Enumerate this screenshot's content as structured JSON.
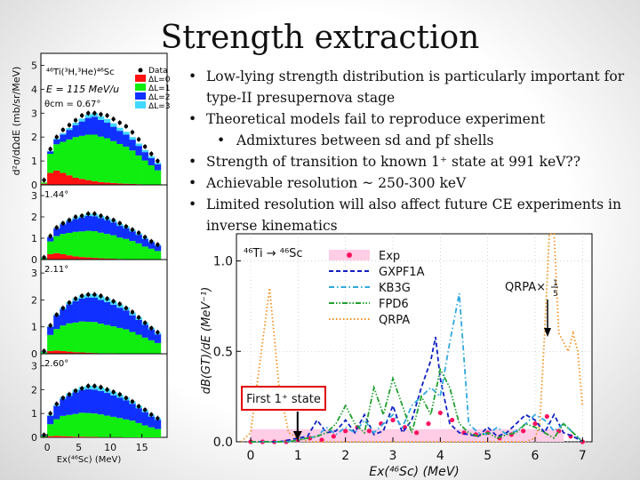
{
  "slide": {
    "title": "Strength extraction",
    "bullets": [
      {
        "text": "Low-lying strength distribution is particularly important for type-II presupernova stage",
        "level": 1
      },
      {
        "text": "Theoretical models fail to reproduce experiment",
        "level": 1
      },
      {
        "text": "Admixtures between sd and pf shells",
        "level": 2
      },
      {
        "text": "Strength of transition to known 1⁺ state at 991 keV??",
        "level": 1
      },
      {
        "text": "Achievable resolution ~ 250-300 keV",
        "level": 1
      },
      {
        "text": "Limited resolution will also affect future CE experiments in inverse kinematics",
        "level": 1
      }
    ]
  },
  "chart_data": [
    {
      "type": "bar",
      "stacked": true,
      "reaction": "⁴⁶Ti(³H,³He)⁴⁶Sc",
      "beam_energy": "E = 115 MeV/u",
      "ylabel": "d²σ/dΩdE (mb/sr/MeV)",
      "xlabel": "Ex(⁴⁶Sc) (MeV)",
      "xlim": [
        -1,
        19
      ],
      "x_ticks": [
        "0",
        "5",
        "10",
        "15"
      ],
      "legend": [
        "Data",
        "ΔL=0",
        "ΔL=1",
        "ΔL=2",
        "ΔL=3"
      ],
      "colors": {
        "dL0": "#ff1010",
        "dL1": "#10ee10",
        "dL2": "#1030ff",
        "dL3": "#40d8ff",
        "data": "#000000"
      },
      "x_centers": [
        -0.5,
        0.5,
        1.5,
        2.5,
        3.5,
        4.5,
        5.5,
        6.5,
        7.5,
        8.5,
        9.5,
        10.5,
        11.5,
        12.5,
        13.5,
        14.5,
        15.5,
        16.5,
        17.5
      ],
      "panels": [
        {
          "angle": "θcm = 0.67°",
          "ylim": [
            0,
            5.5
          ],
          "y_ticks": [
            "0",
            "1",
            "2",
            "3",
            "4",
            "5"
          ],
          "dL0": [
            0.05,
            0.5,
            0.6,
            0.5,
            0.4,
            0.3,
            0.25,
            0.2,
            0.15,
            0.12,
            0.1,
            0.08,
            0.06,
            0.05,
            0.04,
            0.03,
            0.02,
            0.02,
            0.01
          ],
          "dL1": [
            0.05,
            0.8,
            1.1,
            1.3,
            1.5,
            1.7,
            1.8,
            1.9,
            1.95,
            1.9,
            1.85,
            1.75,
            1.65,
            1.55,
            1.4,
            1.2,
            1.0,
            0.8,
            0.6
          ],
          "dL2": [
            0.0,
            0.1,
            0.2,
            0.3,
            0.4,
            0.5,
            0.6,
            0.7,
            0.75,
            0.7,
            0.65,
            0.6,
            0.55,
            0.5,
            0.45,
            0.4,
            0.35,
            0.3,
            0.25
          ],
          "dL3": [
            0.0,
            0.02,
            0.04,
            0.06,
            0.08,
            0.1,
            0.12,
            0.14,
            0.15,
            0.15,
            0.15,
            0.14,
            0.13,
            0.12,
            0.11,
            0.1,
            0.09,
            0.08,
            0.07
          ],
          "data": [
            0.2,
            1.5,
            2.0,
            2.3,
            2.5,
            2.7,
            2.9,
            3.0,
            3.0,
            2.95,
            2.9,
            2.75,
            2.6,
            2.45,
            2.2,
            1.9,
            1.6,
            1.3,
            1.0
          ]
        },
        {
          "angle": "1.44°",
          "ylim": [
            0,
            3.5
          ],
          "y_ticks": [
            "0",
            "1",
            "2",
            "3"
          ],
          "dL0": [
            0.02,
            0.25,
            0.3,
            0.25,
            0.2,
            0.15,
            0.12,
            0.1,
            0.08,
            0.06,
            0.05,
            0.04,
            0.03,
            0.02,
            0.02,
            0.01,
            0.01,
            0.01,
            0.0
          ],
          "dL1": [
            0.05,
            0.6,
            0.8,
            0.95,
            1.05,
            1.15,
            1.2,
            1.25,
            1.25,
            1.2,
            1.15,
            1.1,
            1.0,
            0.95,
            0.85,
            0.75,
            0.6,
            0.5,
            0.4
          ],
          "dL2": [
            0.02,
            0.2,
            0.35,
            0.45,
            0.55,
            0.6,
            0.65,
            0.7,
            0.7,
            0.68,
            0.65,
            0.6,
            0.55,
            0.5,
            0.45,
            0.4,
            0.35,
            0.3,
            0.25
          ],
          "dL3": [
            0.0,
            0.02,
            0.04,
            0.05,
            0.06,
            0.08,
            0.09,
            0.1,
            0.1,
            0.1,
            0.1,
            0.1,
            0.09,
            0.09,
            0.08,
            0.07,
            0.06,
            0.05,
            0.04
          ],
          "data": [
            0.1,
            1.1,
            1.5,
            1.7,
            1.85,
            2.0,
            2.05,
            2.15,
            2.15,
            2.05,
            1.95,
            1.85,
            1.7,
            1.55,
            1.4,
            1.25,
            1.05,
            0.85,
            0.7
          ]
        },
        {
          "angle": "2.11°",
          "ylim": [
            0,
            3.5
          ],
          "y_ticks": [
            "0",
            "1",
            "2",
            "3"
          ],
          "dL0": [
            0.01,
            0.1,
            0.12,
            0.1,
            0.08,
            0.06,
            0.05,
            0.04,
            0.03,
            0.02,
            0.02,
            0.02,
            0.01,
            0.01,
            0.01,
            0.01,
            0.0,
            0.0,
            0.0
          ],
          "dL1": [
            0.05,
            0.6,
            0.8,
            0.95,
            1.05,
            1.1,
            1.15,
            1.15,
            1.15,
            1.1,
            1.05,
            1.0,
            0.95,
            0.9,
            0.8,
            0.7,
            0.6,
            0.5,
            0.4
          ],
          "dL2": [
            0.02,
            0.3,
            0.5,
            0.6,
            0.7,
            0.8,
            0.85,
            0.9,
            0.9,
            0.88,
            0.85,
            0.8,
            0.75,
            0.7,
            0.62,
            0.55,
            0.48,
            0.4,
            0.32
          ],
          "dL3": [
            0.0,
            0.03,
            0.05,
            0.07,
            0.09,
            0.1,
            0.12,
            0.13,
            0.14,
            0.14,
            0.14,
            0.13,
            0.12,
            0.11,
            0.1,
            0.09,
            0.08,
            0.07,
            0.06
          ],
          "data": [
            0.1,
            1.05,
            1.45,
            1.7,
            1.9,
            2.05,
            2.15,
            2.2,
            2.2,
            2.15,
            2.05,
            1.95,
            1.85,
            1.7,
            1.55,
            1.35,
            1.15,
            0.95,
            0.8
          ]
        },
        {
          "angle": "2.60°",
          "ylim": [
            0,
            3.5
          ],
          "y_ticks": [
            "0",
            "1",
            "2",
            "3"
          ],
          "dL0": [
            0.01,
            0.05,
            0.06,
            0.05,
            0.04,
            0.03,
            0.03,
            0.02,
            0.02,
            0.01,
            0.01,
            0.01,
            0.01,
            0.0,
            0.0,
            0.0,
            0.0,
            0.0,
            0.0
          ],
          "dL1": [
            0.05,
            0.5,
            0.7,
            0.85,
            0.9,
            0.95,
            1.0,
            1.0,
            0.98,
            0.95,
            0.9,
            0.85,
            0.8,
            0.75,
            0.7,
            0.6,
            0.5,
            0.42,
            0.35
          ],
          "dL2": [
            0.03,
            0.35,
            0.55,
            0.7,
            0.8,
            0.9,
            0.95,
            1.0,
            1.0,
            0.98,
            0.95,
            0.9,
            0.85,
            0.8,
            0.7,
            0.62,
            0.55,
            0.45,
            0.38
          ],
          "dL3": [
            0.0,
            0.04,
            0.06,
            0.08,
            0.1,
            0.12,
            0.13,
            0.14,
            0.15,
            0.15,
            0.15,
            0.14,
            0.13,
            0.12,
            0.11,
            0.1,
            0.09,
            0.08,
            0.07
          ],
          "data": [
            0.1,
            1.0,
            1.4,
            1.65,
            1.8,
            1.95,
            2.05,
            2.15,
            2.15,
            2.1,
            2.0,
            1.9,
            1.8,
            1.65,
            1.5,
            1.3,
            1.15,
            0.95,
            0.8
          ]
        }
      ]
    },
    {
      "type": "line",
      "reaction": "⁴⁶Ti → ⁴⁶Sc",
      "xlabel": "Ex(⁴⁶Sc) (MeV)",
      "ylabel": "dB(GT)/dE (MeV⁻¹)",
      "xlim": [
        -0.3,
        7.2
      ],
      "ylim": [
        0,
        1.15
      ],
      "x_ticks": [
        0,
        1,
        2,
        3,
        4,
        5,
        6,
        7
      ],
      "y_ticks": [
        "0.0",
        "0.5",
        "1.0"
      ],
      "annotation_box": "First 1⁺ state",
      "qrpa_label": "QRPA×",
      "qrpa_scale_num": "1",
      "qrpa_scale_den": "5",
      "legend": [
        "Exp",
        "GXPF1A",
        "KB3G",
        "FPD6",
        "QRPA"
      ],
      "series": [
        {
          "name": "Exp",
          "style": "points",
          "color": "#ff1060",
          "x": [
            0.0,
            0.25,
            0.5,
            0.75,
            1.0,
            1.25,
            1.5,
            1.75,
            2.0,
            2.25,
            2.5,
            2.75,
            3.0,
            3.25,
            3.5,
            3.75,
            4.0,
            4.25,
            4.5,
            4.75,
            5.0,
            5.25,
            5.5,
            5.75,
            6.0,
            6.25,
            6.5,
            6.75,
            7.0
          ],
          "y": [
            0.0,
            0.0,
            0.0,
            0.0,
            0.01,
            0.02,
            0.01,
            0.03,
            0.06,
            0.08,
            0.06,
            0.1,
            0.12,
            0.08,
            0.05,
            0.1,
            0.16,
            0.12,
            0.05,
            0.04,
            0.05,
            0.02,
            0.04,
            0.06,
            0.1,
            0.14,
            0.06,
            0.03,
            0.0
          ]
        },
        {
          "name": "GXPF1A",
          "style": "dash",
          "color": "#1020c0",
          "x": [
            0.0,
            0.2,
            0.4,
            0.6,
            0.8,
            1.0,
            1.2,
            1.4,
            1.6,
            1.8,
            2.0,
            2.2,
            2.4,
            2.6,
            2.8,
            3.0,
            3.2,
            3.4,
            3.6,
            3.8,
            3.9,
            4.0,
            4.2,
            4.4,
            4.6,
            4.8,
            5.0,
            5.2,
            5.4,
            5.6,
            5.8,
            6.0,
            6.2,
            6.4,
            6.6,
            6.8,
            7.0
          ],
          "y": [
            0.0,
            0.0,
            0.0,
            0.0,
            0.01,
            0.02,
            0.03,
            0.12,
            0.05,
            0.06,
            0.12,
            0.05,
            0.15,
            0.04,
            0.06,
            0.2,
            0.05,
            0.12,
            0.3,
            0.45,
            0.58,
            0.35,
            0.1,
            0.05,
            0.04,
            0.03,
            0.08,
            0.03,
            0.05,
            0.1,
            0.15,
            0.12,
            0.05,
            0.15,
            0.05,
            0.03,
            0.0
          ]
        },
        {
          "name": "KB3G",
          "style": "dashdot",
          "color": "#30a8e0",
          "x": [
            0.0,
            0.2,
            0.4,
            0.6,
            0.8,
            1.0,
            1.2,
            1.4,
            1.6,
            1.8,
            2.0,
            2.2,
            2.4,
            2.6,
            2.8,
            3.0,
            3.2,
            3.4,
            3.6,
            3.8,
            4.0,
            4.2,
            4.4,
            4.6,
            4.8,
            5.0,
            5.2,
            5.4,
            5.6,
            5.8,
            6.0,
            6.2,
            6.4,
            6.6,
            6.8,
            7.0
          ],
          "y": [
            0.0,
            0.0,
            0.0,
            0.0,
            0.0,
            0.01,
            0.02,
            0.03,
            0.08,
            0.04,
            0.08,
            0.05,
            0.12,
            0.05,
            0.1,
            0.15,
            0.08,
            0.2,
            0.25,
            0.3,
            0.25,
            0.55,
            0.82,
            0.1,
            0.05,
            0.04,
            0.08,
            0.04,
            0.06,
            0.1,
            0.15,
            0.12,
            0.06,
            0.1,
            0.05,
            0.0
          ]
        },
        {
          "name": "FPD6",
          "style": "dashdotdot",
          "color": "#20a030",
          "x": [
            0.0,
            0.2,
            0.4,
            0.6,
            0.8,
            1.0,
            1.2,
            1.4,
            1.6,
            1.8,
            2.0,
            2.2,
            2.4,
            2.6,
            2.8,
            3.0,
            3.2,
            3.4,
            3.6,
            3.8,
            4.0,
            4.2,
            4.4,
            4.6,
            4.8,
            5.0,
            5.2,
            5.4,
            5.6,
            5.8,
            6.0,
            6.2,
            6.4,
            6.6,
            6.8,
            7.0
          ],
          "y": [
            0.0,
            0.0,
            0.0,
            0.0,
            0.0,
            0.01,
            0.02,
            0.03,
            0.05,
            0.1,
            0.2,
            0.1,
            0.05,
            0.3,
            0.15,
            0.35,
            0.2,
            0.05,
            0.25,
            0.15,
            0.4,
            0.3,
            0.1,
            0.05,
            0.03,
            0.05,
            0.02,
            0.04,
            0.05,
            0.1,
            0.08,
            0.05,
            0.02,
            0.1,
            0.05,
            0.0
          ]
        },
        {
          "name": "QRPA",
          "style": "dot",
          "color": "#f09020",
          "x": [
            -0.2,
            0.0,
            0.2,
            0.4,
            0.6,
            0.8,
            1.0,
            1.2,
            1.4,
            1.6,
            1.8,
            2.0,
            2.2,
            2.4,
            2.6,
            2.8,
            3.0,
            3.2,
            3.4,
            3.6,
            3.8,
            4.0,
            4.2,
            4.4,
            4.6,
            4.8,
            5.0,
            5.2,
            5.4,
            5.6,
            5.8,
            6.0,
            6.1,
            6.2,
            6.3,
            6.4,
            6.5,
            6.6,
            6.7,
            6.8,
            6.9,
            7.0
          ],
          "y": [
            0.0,
            0.05,
            0.45,
            0.85,
            0.3,
            0.05,
            0.02,
            0.0,
            0.0,
            0.0,
            0.0,
            0.0,
            0.0,
            0.0,
            0.0,
            0.0,
            0.0,
            0.0,
            0.0,
            0.0,
            0.0,
            0.0,
            0.0,
            0.0,
            0.0,
            0.0,
            0.0,
            0.0,
            0.0,
            0.0,
            0.0,
            0.02,
            0.1,
            0.6,
            1.2,
            1.2,
            0.6,
            0.55,
            0.5,
            0.6,
            0.5,
            0.2
          ]
        }
      ]
    }
  ]
}
